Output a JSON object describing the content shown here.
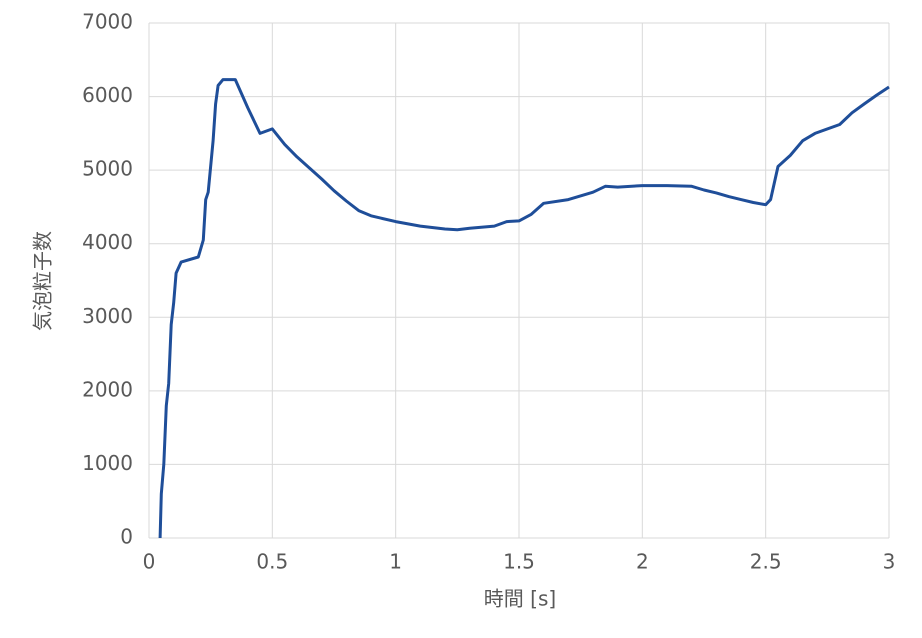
{
  "chart_data": {
    "type": "line",
    "x_label": "時間 [s]",
    "y_label": "気泡粒子数",
    "x": [
      0.045,
      0.05,
      0.06,
      0.07,
      0.08,
      0.09,
      0.1,
      0.11,
      0.13,
      0.2,
      0.22,
      0.23,
      0.24,
      0.26,
      0.27,
      0.28,
      0.3,
      0.35,
      0.4,
      0.45,
      0.5,
      0.55,
      0.6,
      0.7,
      0.75,
      0.8,
      0.85,
      0.9,
      1.0,
      1.1,
      1.2,
      1.25,
      1.3,
      1.4,
      1.45,
      1.5,
      1.55,
      1.6,
      1.7,
      1.8,
      1.85,
      1.9,
      2.0,
      2.1,
      2.2,
      2.25,
      2.3,
      2.35,
      2.4,
      2.45,
      2.5,
      2.52,
      2.55,
      2.6,
      2.65,
      2.7,
      2.8,
      2.85,
      2.9,
      2.95,
      3.0
    ],
    "series": [
      {
        "name": "気泡粒子数",
        "color": "#1f4e99",
        "values": [
          0,
          600,
          1000,
          1800,
          2100,
          2900,
          3200,
          3600,
          3750,
          3820,
          4050,
          4600,
          4700,
          5400,
          5900,
          6150,
          6230,
          6230,
          5850,
          5500,
          5560,
          5350,
          5180,
          4880,
          4720,
          4580,
          4450,
          4380,
          4300,
          4240,
          4200,
          4190,
          4210,
          4240,
          4300,
          4310,
          4400,
          4550,
          4600,
          4700,
          4780,
          4770,
          4790,
          4790,
          4780,
          4730,
          4690,
          4640,
          4600,
          4560,
          4530,
          4600,
          5050,
          5200,
          5400,
          5500,
          5620,
          5780,
          5900,
          6020,
          6130
        ]
      }
    ],
    "xlim": [
      0,
      3
    ],
    "xticks": [
      0,
      0.5,
      1,
      1.5,
      2,
      2.5,
      3
    ],
    "ylim": [
      0,
      7000
    ],
    "yticks": [
      0,
      1000,
      2000,
      3000,
      4000,
      5000,
      6000,
      7000
    ],
    "grid": true
  }
}
